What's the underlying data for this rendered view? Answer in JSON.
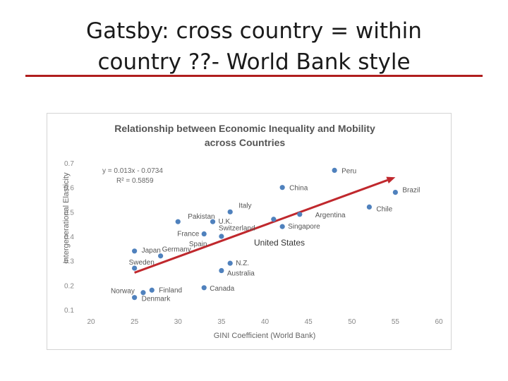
{
  "slide": {
    "title_line1": "Gatsby: cross country = within",
    "title_line2": "country ??- World Bank style",
    "rule_color": "#b01e1e"
  },
  "chart_data": {
    "type": "scatter",
    "title_line1": "Relationship between Economic Inequality and Mobility",
    "title_line2": "across Countries",
    "xlabel": "GINI Coefficient (World Bank)",
    "ylabel": "Intergenerational Elasticity",
    "xlim": [
      20,
      60
    ],
    "ylim": [
      0.1,
      0.7
    ],
    "x_ticks": [
      "20",
      "25",
      "30",
      "35",
      "40",
      "45",
      "50",
      "55",
      "60"
    ],
    "y_ticks": [
      "0.1",
      "0.2",
      "0.3",
      "0.4",
      "0.5",
      "0.6",
      "0.7"
    ],
    "equation": "y = 0.013x - 0.0734",
    "r2": "R² = 0.5859",
    "trendline": {
      "slope": 0.013,
      "intercept": -0.0734,
      "x_start": 25,
      "x_end": 55
    },
    "annotation": "United States",
    "point_color": "#4f81bd",
    "trend_color": "#c0282d",
    "points": [
      {
        "label": "Peru",
        "x": 48,
        "y": 0.67
      },
      {
        "label": "China",
        "x": 42,
        "y": 0.6
      },
      {
        "label": "Brazil",
        "x": 55,
        "y": 0.58
      },
      {
        "label": "Chile",
        "x": 52,
        "y": 0.52
      },
      {
        "label": "Argentina",
        "x": 44,
        "y": 0.49
      },
      {
        "label": "Italy",
        "x": 36,
        "y": 0.5
      },
      {
        "label": "Pakistan",
        "x": 30,
        "y": 0.46
      },
      {
        "label": "U.K.",
        "x": 34,
        "y": 0.46
      },
      {
        "label": "Switzerland",
        "x": 41,
        "y": 0.47
      },
      {
        "label": "Singapore",
        "x": 42,
        "y": 0.44
      },
      {
        "label": "France",
        "x": 33,
        "y": 0.41
      },
      {
        "label": "Spain",
        "x": 35,
        "y": 0.4
      },
      {
        "label": "Germany",
        "x": 28,
        "y": 0.32
      },
      {
        "label": "Japan",
        "x": 25,
        "y": 0.34
      },
      {
        "label": "Sweden",
        "x": 25,
        "y": 0.27
      },
      {
        "label": "N.Z.",
        "x": 36,
        "y": 0.29
      },
      {
        "label": "Australia",
        "x": 35,
        "y": 0.26
      },
      {
        "label": "Canada",
        "x": 33,
        "y": 0.19
      },
      {
        "label": "Finland",
        "x": 27,
        "y": 0.18
      },
      {
        "label": "Norway",
        "x": 26,
        "y": 0.17
      },
      {
        "label": "Denmark",
        "x": 25,
        "y": 0.15
      }
    ]
  }
}
